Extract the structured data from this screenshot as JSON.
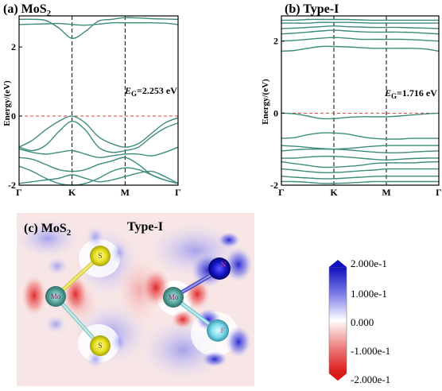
{
  "panel_a": {
    "title_prefix": "(a) MoS",
    "title_sub": "2",
    "ylabel": "Energy/(eV)",
    "gap_label_main": "E",
    "gap_label_sub": "G",
    "gap_value": "=2.253 eV",
    "band_color": "#3c8c7c",
    "fermi_color": "#e0403a"
  },
  "panel_b": {
    "title": "(b) Type-I",
    "ylabel": "Energy/(eV)",
    "gap_label_main": "E",
    "gap_label_sub": "G",
    "gap_value": "=1.716 eV",
    "band_color": "#3c8c7c",
    "fermi_color": "#e0403a"
  },
  "panel_c": {
    "title_prefix": "(c) MoS",
    "title_sub": "2",
    "title_right": "Type-I",
    "atom_labels": [
      "S",
      "Mo",
      "S",
      "Mo",
      "N",
      "F"
    ],
    "colorbar_labels": [
      "2.000e-1",
      "1.000e-1",
      "0.000",
      "-1.000e-1",
      "-2.000e-1"
    ],
    "colors": {
      "positive": "#1414c8",
      "negative": "#dc1e1e",
      "neutral": "#ffffff"
    }
  },
  "chart_data": [
    {
      "type": "line",
      "title": "(a) MoS2",
      "ylabel": "Energy/(eV)",
      "xticks": [
        "Γ",
        "K",
        "M",
        "Γ"
      ],
      "yticks": [
        -2,
        0,
        2
      ],
      "ylim": [
        -2,
        2.9
      ],
      "fermi_level": 0,
      "band_gap_eV": 2.253,
      "x": [
        0,
        0.25,
        0.5,
        0.75,
        1,
        1.25,
        1.5,
        1.75,
        2,
        2.25,
        2.5,
        2.75,
        3
      ],
      "series": [
        {
          "values": [
            2.65,
            2.66,
            2.67,
            2.68,
            2.65,
            2.63,
            2.66,
            2.7,
            2.7,
            2.7,
            2.7,
            2.69,
            2.65
          ]
        },
        {
          "values": [
            2.8,
            2.8,
            2.77,
            2.55,
            2.25,
            2.45,
            2.75,
            2.8,
            2.85,
            2.84,
            2.82,
            2.81,
            2.8
          ]
        },
        {
          "values": [
            -0.9,
            -0.7,
            -0.4,
            -0.15,
            0.0,
            -0.2,
            -0.6,
            -0.8,
            -0.9,
            -0.8,
            -0.5,
            -0.2,
            -0.05
          ]
        },
        {
          "values": [
            -0.9,
            -1.0,
            -0.85,
            -0.45,
            -0.15,
            -0.4,
            -0.9,
            -1.05,
            -1.0,
            -0.9,
            -0.6,
            -0.35,
            -0.2
          ]
        },
        {
          "values": [
            -0.95,
            -1.05,
            -1.1,
            -1.05,
            -1.0,
            -1.1,
            -1.2,
            -1.15,
            -1.1,
            -1.1,
            -1.15,
            -1.05,
            -0.9
          ]
        },
        {
          "values": [
            -1.2,
            -1.25,
            -1.4,
            -1.55,
            -1.6,
            -1.55,
            -1.4,
            -1.3,
            -1.2,
            -1.4,
            -1.7,
            -1.85,
            -1.95
          ]
        },
        {
          "values": [
            -1.45,
            -1.6,
            -1.8,
            -1.95,
            -2.0,
            -1.95,
            -1.8,
            -1.6,
            -1.5,
            -1.55,
            -1.7,
            -1.85,
            -1.95
          ]
        },
        {
          "values": [
            -1.95,
            -1.9,
            -1.85,
            -1.8,
            -1.7,
            -1.8,
            -1.9,
            -1.85,
            -1.75,
            -1.65,
            -1.6,
            -1.75,
            -1.95
          ]
        }
      ]
    },
    {
      "type": "line",
      "title": "(b) Type-I",
      "ylabel": "Energy/(eV)",
      "xticks": [
        "Γ",
        "K",
        "M",
        "Γ"
      ],
      "yticks": [
        -2,
        0,
        2
      ],
      "ylim": [
        -2,
        2.7
      ],
      "fermi_level": 0,
      "band_gap_eV": 1.716,
      "x": [
        0,
        0.25,
        0.5,
        0.75,
        1,
        1.25,
        1.5,
        1.75,
        2,
        2.25,
        2.5,
        2.75,
        3
      ],
      "series": [
        {
          "values": [
            1.72,
            1.74,
            1.8,
            1.85,
            1.85,
            1.84,
            1.82,
            1.8,
            1.8,
            1.8,
            1.8,
            1.78,
            1.72
          ]
        },
        {
          "values": [
            2.0,
            2.02,
            2.05,
            2.08,
            2.1,
            2.08,
            2.05,
            2.05,
            2.05,
            2.05,
            2.04,
            2.02,
            2.0
          ]
        },
        {
          "values": [
            2.2,
            2.22,
            2.25,
            2.28,
            2.3,
            2.28,
            2.26,
            2.25,
            2.25,
            2.25,
            2.24,
            2.22,
            2.2
          ]
        },
        {
          "values": [
            2.35,
            2.36,
            2.38,
            2.4,
            2.42,
            2.4,
            2.39,
            2.38,
            2.38,
            2.38,
            2.37,
            2.36,
            2.35
          ]
        },
        {
          "values": [
            2.5,
            2.5,
            2.5,
            2.52,
            2.52,
            2.52,
            2.51,
            2.5,
            2.5,
            2.5,
            2.5,
            2.5,
            2.5
          ]
        },
        {
          "values": [
            2.58,
            2.58,
            2.6,
            2.6,
            2.6,
            2.6,
            2.59,
            2.58,
            2.58,
            2.58,
            2.58,
            2.58,
            2.58
          ]
        },
        {
          "values": [
            0.0,
            -0.02,
            -0.08,
            -0.15,
            -0.15,
            -0.12,
            -0.1,
            -0.1,
            -0.1,
            -0.08,
            -0.05,
            -0.02,
            0.0
          ]
        },
        {
          "values": [
            -0.7,
            -0.68,
            -0.6,
            -0.55,
            -0.55,
            -0.58,
            -0.65,
            -0.7,
            -0.72,
            -0.72,
            -0.7,
            -0.7,
            -0.7
          ]
        },
        {
          "values": [
            -0.9,
            -0.92,
            -0.95,
            -0.98,
            -1.0,
            -0.98,
            -0.95,
            -0.92,
            -0.9,
            -0.9,
            -0.9,
            -0.9,
            -0.9
          ]
        },
        {
          "values": [
            -1.05,
            -1.02,
            -1.0,
            -1.0,
            -1.0,
            -1.02,
            -1.05,
            -1.08,
            -1.1,
            -1.1,
            -1.08,
            -1.06,
            -1.05
          ]
        },
        {
          "values": [
            -1.25,
            -1.25,
            -1.22,
            -1.2,
            -1.2,
            -1.22,
            -1.25,
            -1.28,
            -1.3,
            -1.28,
            -1.26,
            -1.25,
            -1.25
          ]
        },
        {
          "values": [
            -1.35,
            -1.4,
            -1.45,
            -1.5,
            -1.5,
            -1.48,
            -1.45,
            -1.4,
            -1.38,
            -1.38,
            -1.38,
            -1.36,
            -1.35
          ]
        },
        {
          "values": [
            -1.55,
            -1.58,
            -1.62,
            -1.65,
            -1.65,
            -1.63,
            -1.6,
            -1.58,
            -1.55,
            -1.55,
            -1.55,
            -1.55,
            -1.55
          ]
        },
        {
          "values": [
            -1.75,
            -1.78,
            -1.8,
            -1.82,
            -1.82,
            -1.8,
            -1.78,
            -1.76,
            -1.75,
            -1.75,
            -1.75,
            -1.75,
            -1.75
          ]
        },
        {
          "values": [
            -1.9,
            -1.9,
            -1.92,
            -1.95,
            -1.95,
            -1.94,
            -1.92,
            -1.9,
            -1.9,
            -1.9,
            -1.9,
            -1.9,
            -1.9
          ]
        }
      ]
    }
  ]
}
